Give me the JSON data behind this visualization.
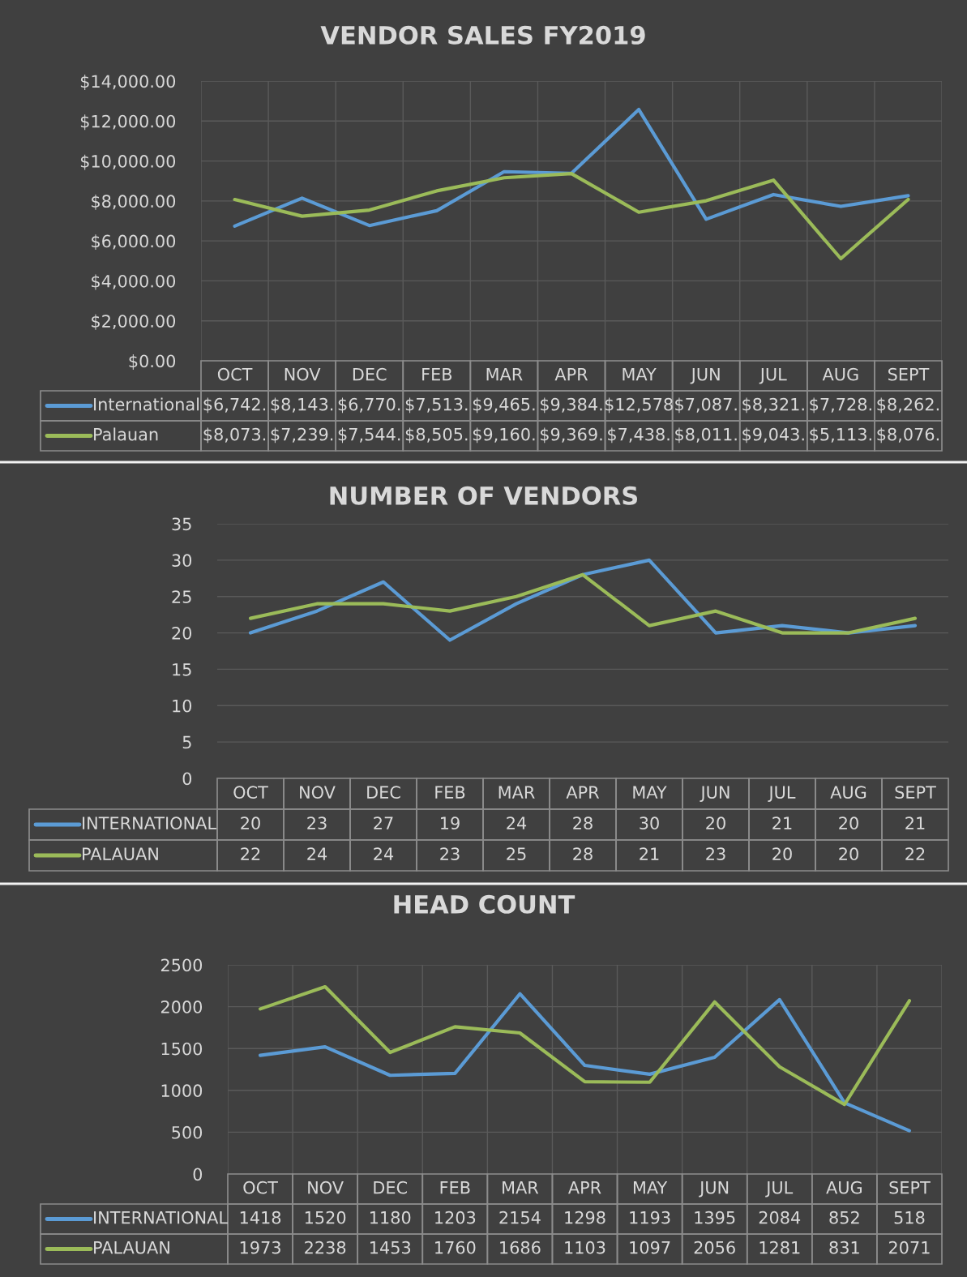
{
  "chart_data": [
    {
      "type": "line",
      "title": "VENDOR SALES FY2019",
      "categories": [
        "OCT",
        "NOV",
        "DEC",
        "FEB",
        "MAR",
        "APR",
        "MAY",
        "JUN",
        "JUL",
        "AUG",
        "SEPT"
      ],
      "series": [
        {
          "name": "International",
          "color": "#5b9bd5",
          "values": [
            6742,
            8143,
            6770,
            7513,
            9465,
            9384,
            12578,
            7087,
            8321,
            7728,
            8262
          ],
          "value_labels": [
            "$6,742.",
            "$8,143.",
            "$6,770.",
            "$7,513.",
            "$9,465.",
            "$9,384.",
            "$12,578",
            "$7,087.",
            "$8,321.",
            "$7,728.",
            "$8,262."
          ]
        },
        {
          "name": "Palauan",
          "color": "#9bbb59",
          "values": [
            8073,
            7239,
            7544,
            8505,
            9160,
            9369,
            7438,
            8011,
            9043,
            5113,
            8076
          ],
          "value_labels": [
            "$8,073.",
            "$7,239.",
            "$7,544.",
            "$8,505.",
            "$9,160.",
            "$9,369.",
            "$7,438.",
            "$8,011.",
            "$9,043.",
            "$5,113.",
            "$8,076."
          ]
        }
      ],
      "ylim": [
        0,
        14000
      ],
      "yticks": [
        {
          "value": 0,
          "label": "$0.00"
        },
        {
          "value": 2000,
          "label": "$2,000.00"
        },
        {
          "value": 4000,
          "label": "$4,000.00"
        },
        {
          "value": 6000,
          "label": "$6,000.00"
        },
        {
          "value": 8000,
          "label": "$8,000.00"
        },
        {
          "value": 10000,
          "label": "$10,000.00"
        },
        {
          "value": 12000,
          "label": "$12,000.00"
        },
        {
          "value": 14000,
          "label": "$14,000.00"
        }
      ],
      "grid": true,
      "legend": "bottom",
      "marker": "none",
      "line_style": "solid"
    },
    {
      "type": "line",
      "title": "NUMBER OF VENDORS",
      "categories": [
        "OCT",
        "NOV",
        "DEC",
        "FEB",
        "MAR",
        "APR",
        "MAY",
        "JUN",
        "JUL",
        "AUG",
        "SEPT"
      ],
      "series": [
        {
          "name": "INTERNATIONAL",
          "color": "#5b9bd5",
          "values": [
            20,
            23,
            27,
            19,
            24,
            28,
            30,
            20,
            21,
            20,
            21
          ]
        },
        {
          "name": "PALAUAN",
          "color": "#9bbb59",
          "values": [
            22,
            24,
            24,
            23,
            25,
            28,
            21,
            23,
            20,
            20,
            22
          ]
        }
      ],
      "ylim": [
        0,
        35
      ],
      "yticks": [
        0,
        5,
        10,
        15,
        20,
        25,
        30,
        35
      ],
      "grid": "y",
      "legend": "bottom",
      "marker": "none",
      "line_style": "solid",
      "data_labels": true
    },
    {
      "type": "line",
      "title": "HEAD COUNT",
      "categories": [
        "OCT",
        "NOV",
        "DEC",
        "FEB",
        "MAR",
        "APR",
        "MAY",
        "JUN",
        "JUL",
        "AUG",
        "SEPT"
      ],
      "series": [
        {
          "name": "INTERNATIONAL",
          "color": "#5b9bd5",
          "values": [
            1418,
            1520,
            1180,
            1203,
            2154,
            1298,
            1193,
            1395,
            2084,
            852,
            518
          ]
        },
        {
          "name": "PALAUAN",
          "color": "#9bbb59",
          "values": [
            1973,
            2238,
            1453,
            1760,
            1686,
            1103,
            1097,
            2056,
            1281,
            831,
            2071
          ]
        }
      ],
      "ylim": [
        0,
        2500
      ],
      "yticks": [
        0,
        500,
        1000,
        1500,
        2000,
        2500
      ],
      "grid": true,
      "legend": "bottom",
      "marker": "none",
      "line_style": "solid",
      "data_labels": true
    }
  ]
}
